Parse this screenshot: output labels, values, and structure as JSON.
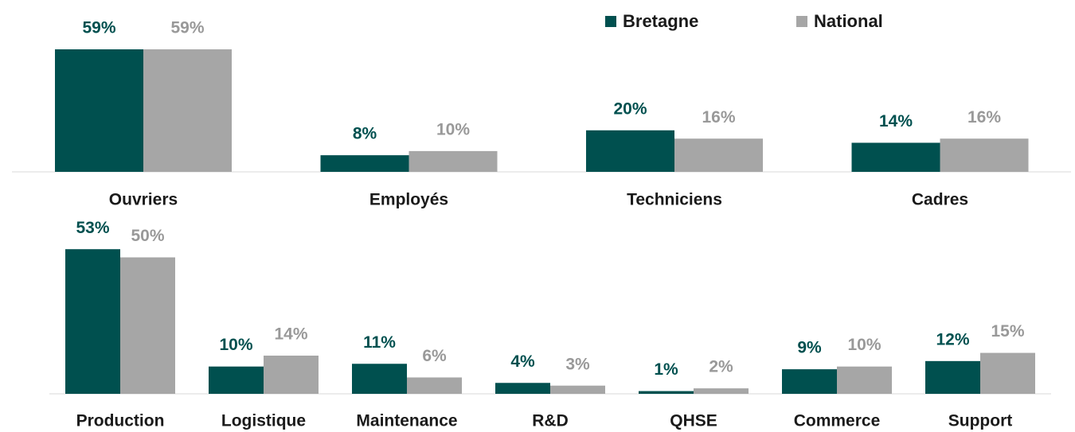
{
  "chart_data": [
    {
      "type": "bar",
      "categories": [
        "Ouvriers",
        "Employés",
        "Techniciens",
        "Cadres"
      ],
      "series": [
        {
          "name": "Bretagne",
          "color": "#00504f",
          "values": [
            59,
            8,
            20,
            14
          ],
          "value_labels": [
            "59%",
            "8%",
            "20%",
            "14%"
          ]
        },
        {
          "name": "National",
          "color": "#a6a6a6",
          "values": [
            59,
            10,
            16,
            16
          ],
          "value_labels": [
            "59%",
            "10%",
            "16%",
            "16%"
          ]
        }
      ]
    },
    {
      "type": "bar",
      "categories": [
        "Production",
        "Logistique",
        "Maintenance",
        "R&D",
        "QHSE",
        "Commerce",
        "Support"
      ],
      "series": [
        {
          "color": "#00504f",
          "values": [
            53,
            10,
            11,
            4,
            1,
            9,
            12
          ],
          "value_labels": [
            "53%",
            "10%",
            "11%",
            "4%",
            "1%",
            "9%",
            "12%"
          ]
        },
        {
          "color": "#a6a6a6",
          "values": [
            50,
            14,
            6,
            3,
            2,
            10,
            15
          ],
          "value_labels": [
            "50%",
            "14%",
            "6%",
            "3%",
            "2%",
            "10%",
            "15%"
          ]
        }
      ]
    }
  ]
}
